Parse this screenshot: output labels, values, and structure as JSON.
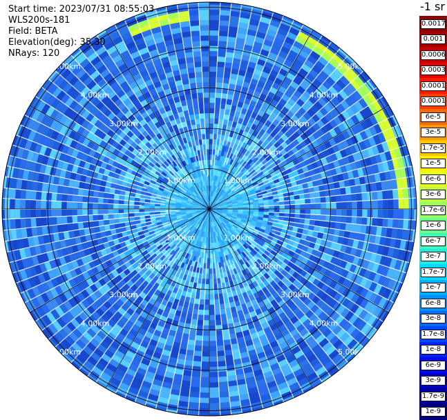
{
  "header": {
    "start_time": "Start time: 2023/07/31 08:55:03",
    "instrument": "WLS200s-181",
    "field": "Field: BETA",
    "elevation": "Elevation(deg): 35.30",
    "nrays": "NRays: 120"
  },
  "units": "-1 sr",
  "range_labels": [
    "1.00km",
    "2.00km",
    "3.00km",
    "4.00km",
    "5.00km"
  ],
  "colorbar": [
    {
      "label": "0.0017",
      "color": "#8b0000"
    },
    {
      "label": "0.001",
      "color": "#a40000"
    },
    {
      "label": "0.0006",
      "color": "#c80000"
    },
    {
      "label": "0.0003",
      "color": "#e60000"
    },
    {
      "label": "0.00017",
      "color": "#ff1a00"
    },
    {
      "label": "0.0001",
      "color": "#ff4000"
    },
    {
      "label": "6e-5",
      "color": "#ff6a00"
    },
    {
      "label": "3e-5",
      "color": "#ff9900"
    },
    {
      "label": "1.7e-5",
      "color": "#ffc400"
    },
    {
      "label": "1e-5",
      "color": "#ffee00"
    },
    {
      "label": "6e-6",
      "color": "#e8ff18"
    },
    {
      "label": "3e-6",
      "color": "#c0ff3c"
    },
    {
      "label": "1.7e-6",
      "color": "#9aff60"
    },
    {
      "label": "1e-6",
      "color": "#6cff8a"
    },
    {
      "label": "6e-7",
      "color": "#40ffb6"
    },
    {
      "label": "3e-7",
      "color": "#18f0e0"
    },
    {
      "label": "1.7e-7",
      "color": "#00d8ff"
    },
    {
      "label": "1e-7",
      "color": "#00b0ff"
    },
    {
      "label": "6e-8",
      "color": "#0090ff"
    },
    {
      "label": "3e-8",
      "color": "#006cff"
    },
    {
      "label": "1.7e-8",
      "color": "#0048ff"
    },
    {
      "label": "1e-8",
      "color": "#0024ff"
    },
    {
      "label": "6e-9",
      "color": "#0008f0"
    },
    {
      "label": "3e-9",
      "color": "#0000c8"
    },
    {
      "label": "1.7e-9",
      "color": "#0000a0"
    },
    {
      "label": "1e-9",
      "color": "#00007a"
    }
  ],
  "colors": {
    "background_field": "#2a74e8",
    "ring_band": "#d4ff3a",
    "near_field": "#39c7ff"
  }
}
